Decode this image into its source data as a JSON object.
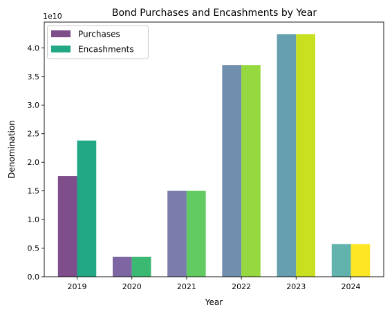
{
  "chart_data": {
    "type": "bar",
    "title": "Bond Purchases and Encashments by Year",
    "xlabel": "Year",
    "ylabel": "Denomination",
    "scale_label": "1e10",
    "categories": [
      "2019",
      "2020",
      "2021",
      "2022",
      "2023",
      "2024"
    ],
    "series": [
      {
        "name": "Purchases",
        "values": [
          17600000000.0,
          3500000000.0,
          15000000000.0,
          37000000000.0,
          42400000000.0,
          5700000000.0
        ],
        "colors": [
          "#7d4e89",
          "#7d66a2",
          "#7b7bac",
          "#718eae",
          "#66a0af",
          "#62b2ae"
        ]
      },
      {
        "name": "Encashments",
        "values": [
          23800000000.0,
          3500000000.0,
          15000000000.0,
          37000000000.0,
          42400000000.0,
          5700000000.0
        ],
        "colors": [
          "#22a884",
          "#3bb972",
          "#62cb61",
          "#95d840",
          "#c8e020",
          "#fde725"
        ]
      }
    ],
    "ylim": [
      0,
      44500000000.0
    ],
    "yticks": [
      0,
      5000000000.0,
      10000000000.0,
      15000000000.0,
      20000000000.0,
      25000000000.0,
      30000000000.0,
      35000000000.0,
      40000000000.0
    ],
    "ytick_labels": [
      "0.0",
      "0.5",
      "1.0",
      "1.5",
      "2.0",
      "2.5",
      "3.0",
      "3.5",
      "4.0"
    ],
    "legend": {
      "position": "top-left",
      "entries": [
        {
          "label": "Purchases",
          "color": "#7d4e89"
        },
        {
          "label": "Encashments",
          "color": "#22a884"
        }
      ]
    },
    "grid": false
  }
}
